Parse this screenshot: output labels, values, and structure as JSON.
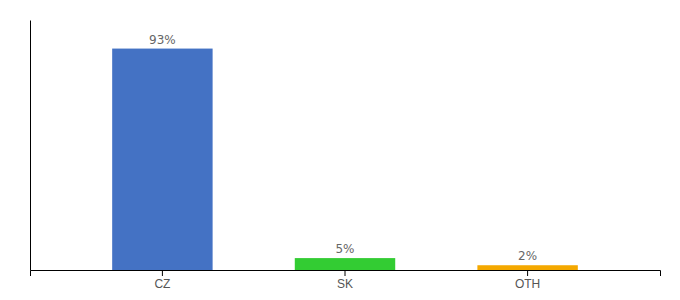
{
  "chart_data": {
    "type": "bar",
    "categories": [
      "CZ",
      "SK",
      "OTH"
    ],
    "values": [
      93,
      5,
      2
    ],
    "value_labels": [
      "93%",
      "5%",
      "2%"
    ],
    "data_labels": true,
    "colors": [
      "#4472C4",
      "#33CC33",
      "#F4A800"
    ],
    "ylim": [
      0,
      105
    ],
    "tick_labels": "x"
  }
}
